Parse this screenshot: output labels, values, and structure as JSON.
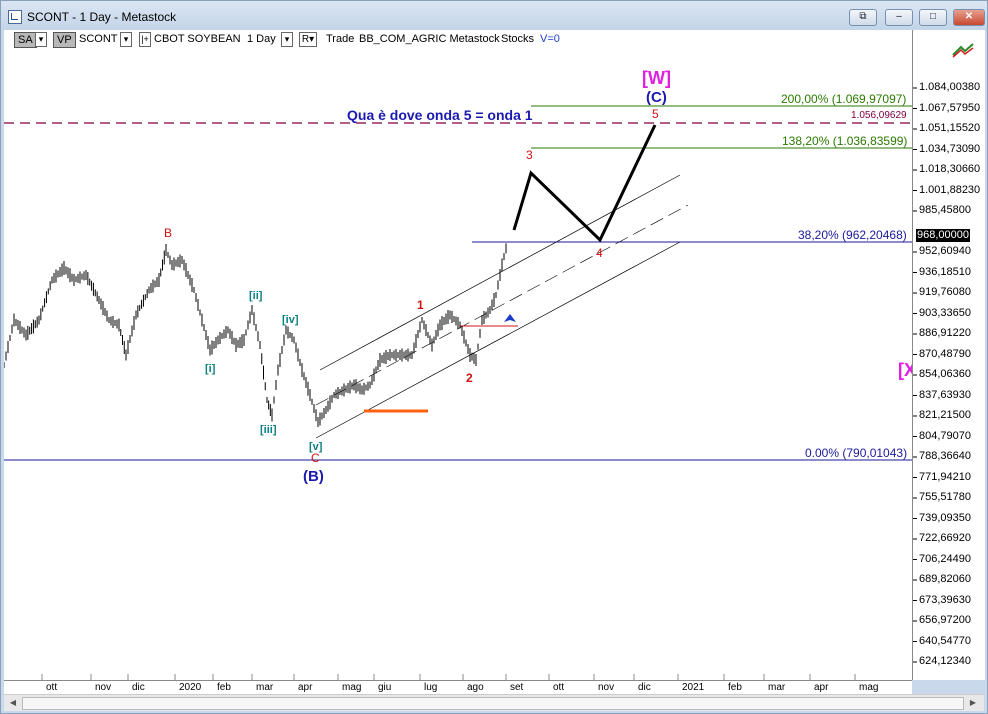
{
  "window": {
    "title": "SCONT - 1 Day - Metastock",
    "buttons": [
      "restore-down",
      "minimize",
      "maximize",
      "close"
    ]
  },
  "toolbar": {
    "sa": "SA",
    "vp": "VP",
    "symbol": "SCONT",
    "description": "CBOT SOYBEAN",
    "period": "1 Day",
    "mode": "R",
    "trade": "Trade",
    "data_source": "BB_COM_AGRIC Metastock",
    "stocks": "Stocks",
    "v": "V=0"
  },
  "annotations": {
    "headline": "Qua è dove onda 5 = onda 1",
    "fib_200": "200,00% (1.069,97097)",
    "fib_dashed": "1.056,09629",
    "fib_138": "138,20% (1.036,83599)",
    "fib_38": "38,20% (962,20468)",
    "fib_0": "0.00% (790,01043)",
    "w_label": "[W]",
    "c_label": "(C)",
    "b_label": "(B)",
    "x_label": "[X",
    "wave_B": "B",
    "wave_C": "C",
    "wave_1": "1",
    "wave_2": "2",
    "wave_3": "3",
    "wave_4": "4",
    "wave_5": "5",
    "wave_i": "[i]",
    "wave_ii": "[ii]",
    "wave_iii": "[iii]",
    "wave_iv": "[iv]",
    "wave_v": "[v]"
  },
  "price_axis": {
    "last_price": "968,00000",
    "ticks": [
      "1.084,00380",
      "1.067,57950",
      "1.051,15520",
      "1.034,73090",
      "1.018,30660",
      "1.001,88230",
      "985,45800",
      "952,60940",
      "936,18510",
      "919,76080",
      "903,33650",
      "886,91220",
      "870,48790",
      "854,06360",
      "837,63930",
      "821,21500",
      "804,79070",
      "788,36640",
      "771,94210",
      "755,51780",
      "739,09350",
      "722,66920",
      "706,24490",
      "689,82060",
      "673,39630",
      "656,97200",
      "640,54770",
      "624,12340"
    ]
  },
  "time_axis": {
    "labels": [
      "ott",
      "nov",
      "dic",
      "2020",
      "feb",
      "mar",
      "apr",
      "mag",
      "giu",
      "lug",
      "ago",
      "set",
      "ott",
      "nov",
      "dic",
      "2021",
      "feb",
      "mar",
      "apr",
      "mag"
    ]
  },
  "colors": {
    "bars": "#000000",
    "fib_green": "#2a7a00",
    "fib_blue": "#1a1a9a",
    "dashed": "#800040",
    "magenta": "#e020e0",
    "red_label": "#d01010",
    "teal_label": "#0a8080",
    "orange": "#ff6010"
  }
}
